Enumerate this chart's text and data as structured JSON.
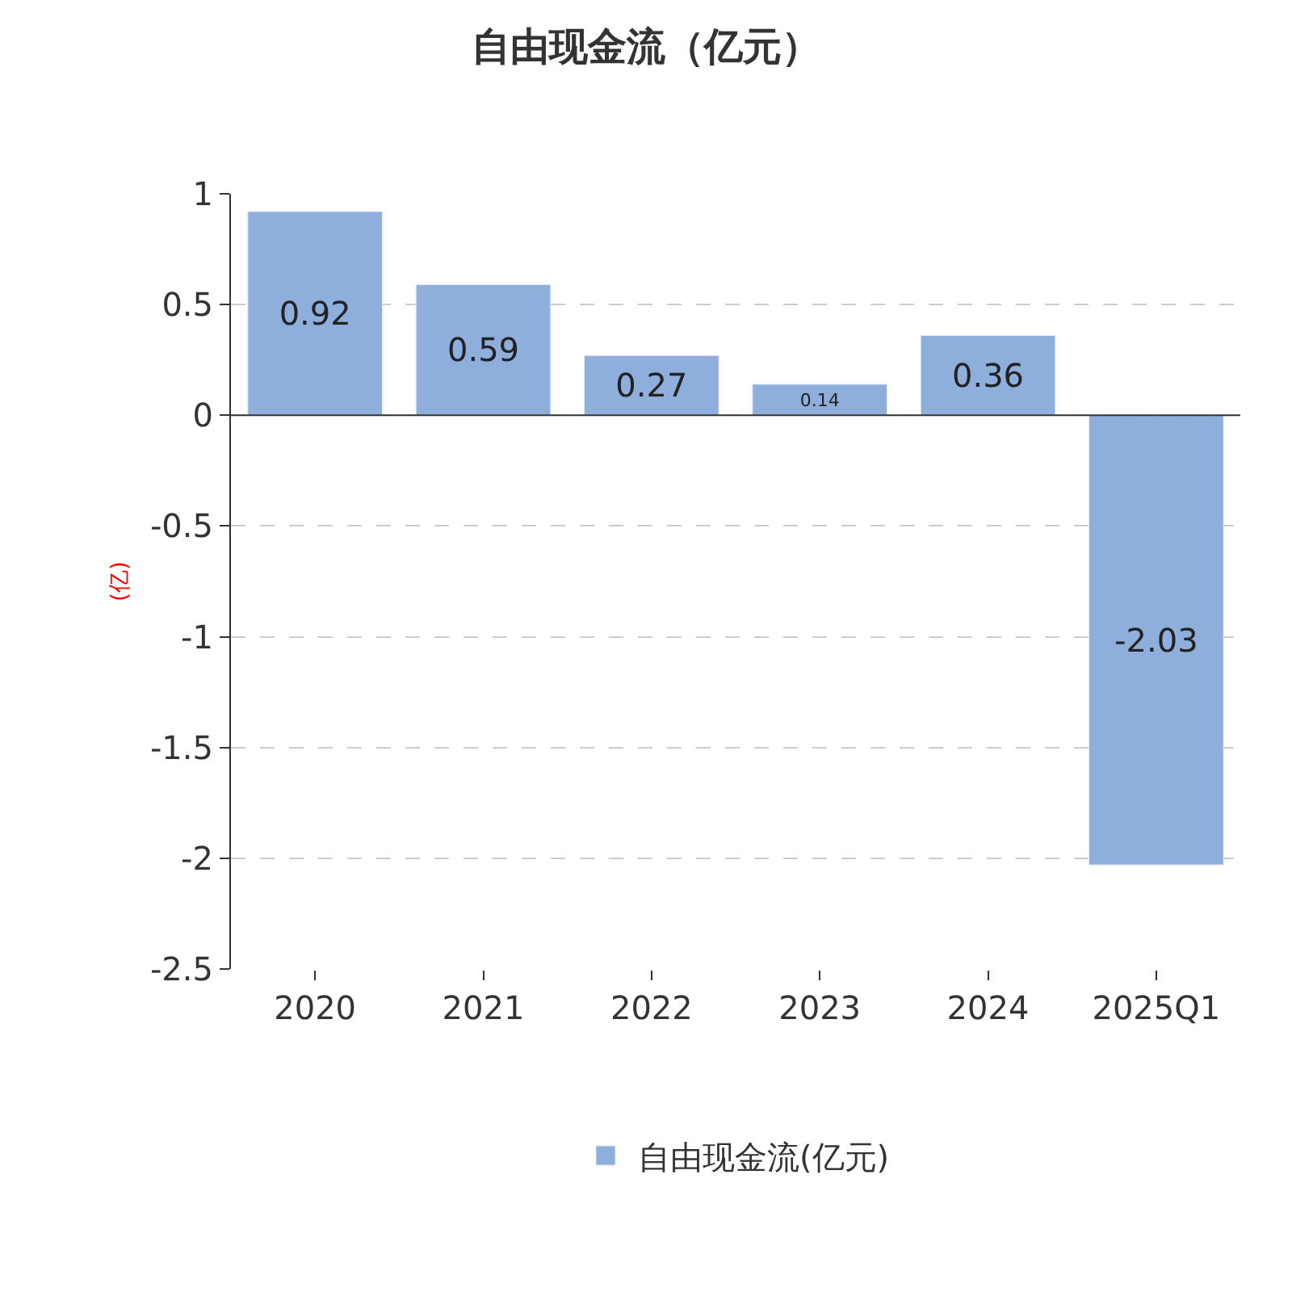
{
  "chart_data": {
    "type": "bar",
    "title": "自由现金流（亿元）",
    "ylabel": "(亿)",
    "categories": [
      "2020",
      "2021",
      "2022",
      "2023",
      "2024",
      "2025Q1"
    ],
    "series": [
      {
        "name": "自由现金流(亿元)",
        "color": "#8eaedb",
        "values": [
          0.92,
          0.59,
          0.27,
          0.14,
          0.36,
          -2.03
        ]
      }
    ],
    "ylim": [
      -2.5,
      1
    ],
    "yticks": [
      -2.5,
      -2,
      -1.5,
      -1,
      -0.5,
      0,
      0.5,
      1
    ],
    "grid": "y",
    "legend": "bottom",
    "data_labels": true
  }
}
